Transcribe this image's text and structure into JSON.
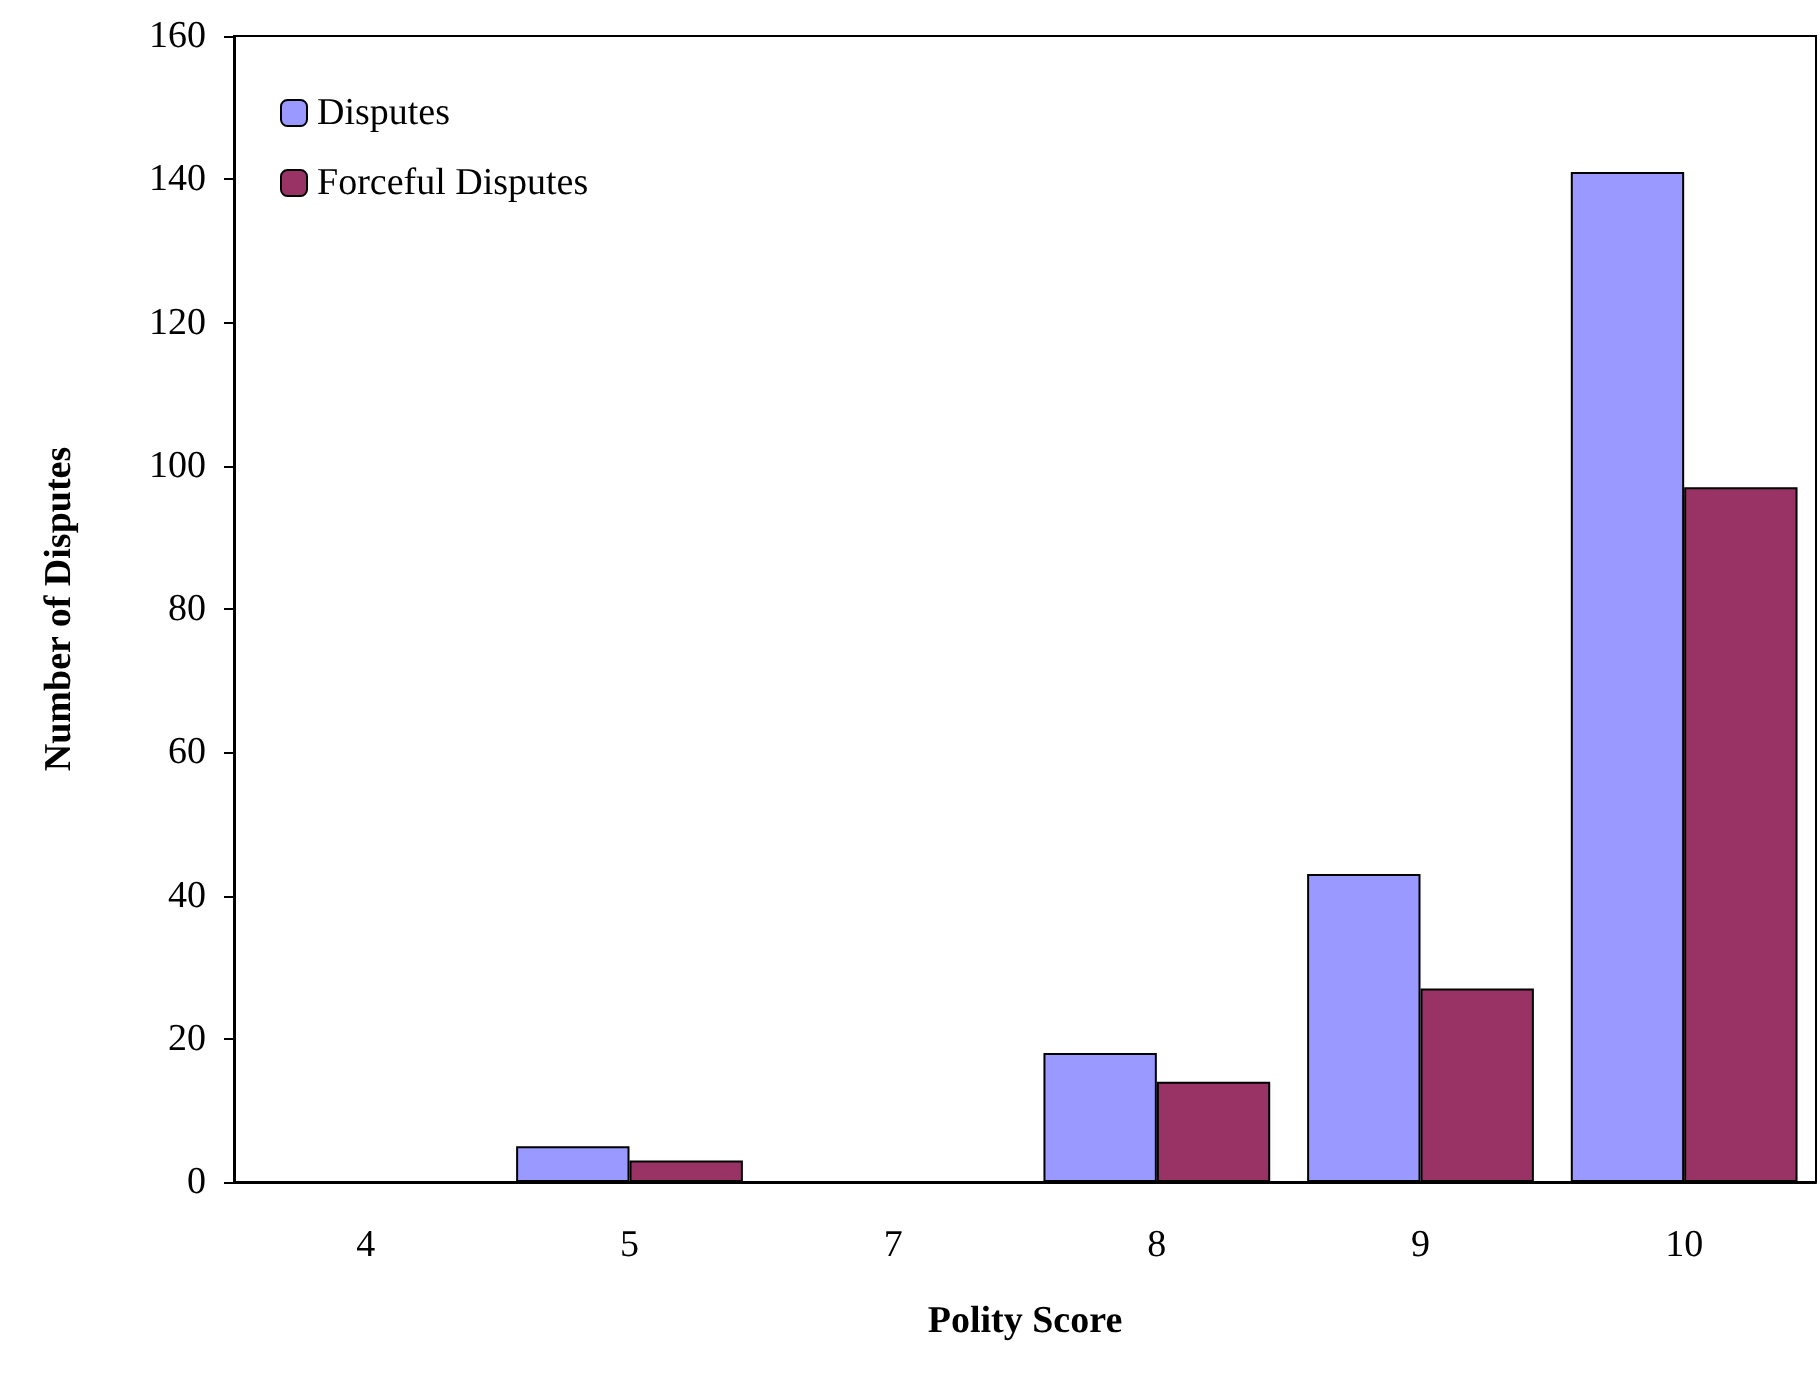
{
  "chart_data": {
    "type": "bar",
    "xlabel": "Polity Score",
    "ylabel": "Number of Disputes",
    "categories": [
      "4",
      "5",
      "7",
      "8",
      "9",
      "10"
    ],
    "series": [
      {
        "name": "Disputes",
        "color": "#9999ff",
        "values": [
          0,
          5,
          0,
          18,
          43,
          141
        ]
      },
      {
        "name": "Forceful Disputes",
        "color": "#993366",
        "values": [
          0,
          3,
          0,
          14,
          27,
          97
        ]
      }
    ],
    "ylim": [
      0,
      160
    ],
    "yticks": [
      0,
      20,
      40,
      60,
      80,
      100,
      120,
      140,
      160
    ],
    "grid": false,
    "legend": "top left"
  }
}
